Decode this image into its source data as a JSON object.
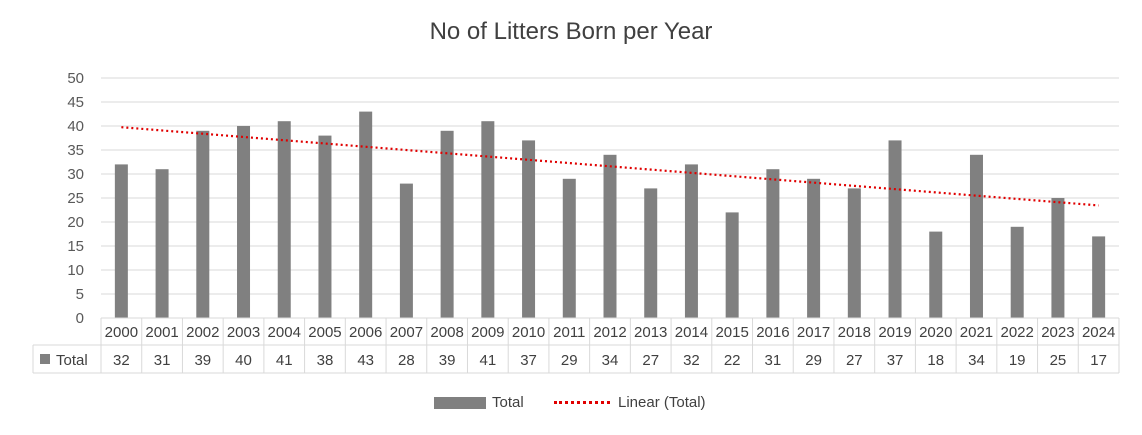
{
  "chart_data": {
    "type": "bar",
    "title": "No of Litters Born per Year",
    "categories": [
      "2000",
      "2001",
      "2002",
      "2003",
      "2004",
      "2005",
      "2006",
      "2007",
      "2008",
      "2009",
      "2010",
      "2011",
      "2012",
      "2013",
      "2014",
      "2015",
      "2016",
      "2017",
      "2018",
      "2019",
      "2020",
      "2021",
      "2022",
      "2023",
      "2024"
    ],
    "series": [
      {
        "name": "Total",
        "values": [
          32,
          31,
          39,
          40,
          41,
          38,
          43,
          28,
          39,
          41,
          37,
          29,
          34,
          27,
          32,
          22,
          31,
          29,
          27,
          37,
          18,
          34,
          19,
          25,
          17
        ],
        "color": "#808080"
      }
    ],
    "trendline": {
      "name": "Linear (Total)",
      "kind": "linear",
      "color": "#e00000",
      "style": "dotted"
    },
    "ylim": [
      0,
      50
    ],
    "yticks": [
      0,
      5,
      10,
      15,
      20,
      25,
      30,
      35,
      40,
      45,
      50
    ],
    "grid": true,
    "legend": "bottom",
    "data_table": true
  }
}
